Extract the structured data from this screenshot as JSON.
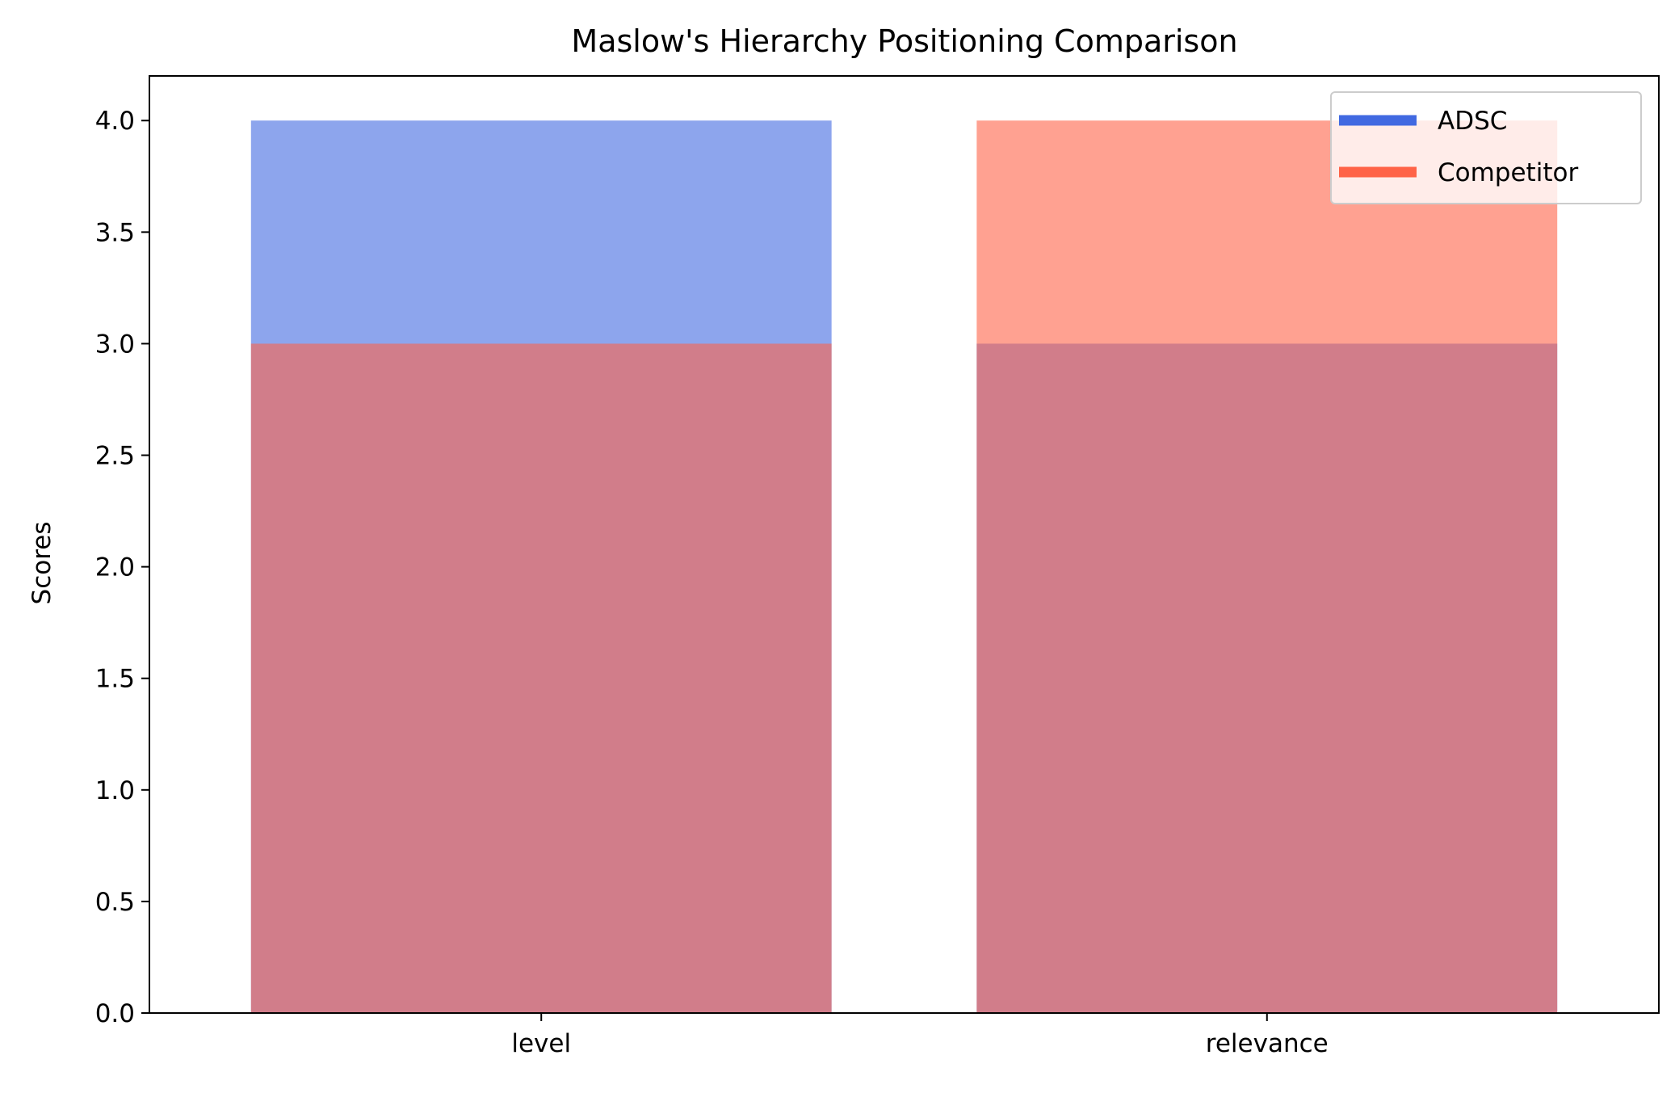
{
  "chart_data": {
    "type": "bar",
    "title": "Maslow's Hierarchy Positioning Comparison",
    "xlabel": "",
    "ylabel": "Scores",
    "categories": [
      "level",
      "relevance"
    ],
    "series": [
      {
        "name": "ADSC",
        "values": [
          4,
          3
        ],
        "color": "#4169E1",
        "opacity": 0.6
      },
      {
        "name": "Competitor",
        "values": [
          3,
          4
        ],
        "color": "#FF6347",
        "opacity": 0.6
      }
    ],
    "ylim": [
      0,
      4.2
    ],
    "yticks": [
      "0.0",
      "0.5",
      "1.0",
      "1.5",
      "2.0",
      "2.5",
      "3.0",
      "3.5",
      "4.0"
    ],
    "legend_position": "top-right",
    "grid": false,
    "overlay": true
  }
}
